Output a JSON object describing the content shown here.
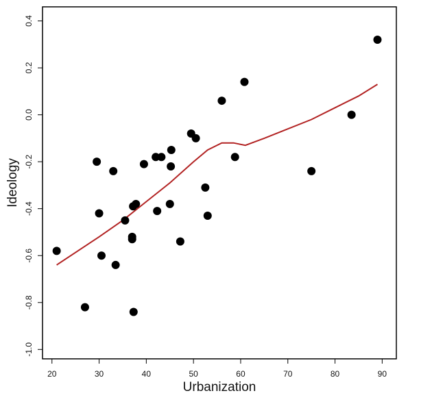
{
  "chart_data": {
    "type": "scatter",
    "xlabel": "Urbanization",
    "ylabel": "Ideology",
    "xlim": [
      18,
      93
    ],
    "ylim": [
      -1.04,
      0.46
    ],
    "x_ticks": [
      20,
      30,
      40,
      50,
      60,
      70,
      80,
      90
    ],
    "y_ticks": [
      -1.0,
      -0.8,
      -0.6,
      -0.4,
      -0.2,
      0.0,
      0.2,
      0.4
    ],
    "y_tick_labels": [
      "-1.0",
      "-0.8",
      "-0.6",
      "-0.4",
      "-0.2",
      "0.0",
      "0.2",
      "0.4"
    ],
    "grid": false,
    "point_color": "#000000",
    "line_color": "#b22222",
    "points": [
      {
        "x": 21,
        "y": -0.58
      },
      {
        "x": 27,
        "y": -0.82
      },
      {
        "x": 29.5,
        "y": -0.2
      },
      {
        "x": 30,
        "y": -0.42
      },
      {
        "x": 30.5,
        "y": -0.6
      },
      {
        "x": 33,
        "y": -0.24
      },
      {
        "x": 33.5,
        "y": -0.64
      },
      {
        "x": 35.5,
        "y": -0.45
      },
      {
        "x": 37,
        "y": -0.52
      },
      {
        "x": 37,
        "y": -0.53
      },
      {
        "x": 37.2,
        "y": -0.39
      },
      {
        "x": 37.3,
        "y": -0.84
      },
      {
        "x": 37.8,
        "y": -0.38
      },
      {
        "x": 39.5,
        "y": -0.21
      },
      {
        "x": 42,
        "y": -0.18
      },
      {
        "x": 42.3,
        "y": -0.41
      },
      {
        "x": 43.2,
        "y": -0.18
      },
      {
        "x": 45,
        "y": -0.38
      },
      {
        "x": 45.2,
        "y": -0.22
      },
      {
        "x": 45.3,
        "y": -0.15
      },
      {
        "x": 47.2,
        "y": -0.54
      },
      {
        "x": 49.5,
        "y": -0.08
      },
      {
        "x": 50.5,
        "y": -0.1
      },
      {
        "x": 52.5,
        "y": -0.31
      },
      {
        "x": 53,
        "y": -0.43
      },
      {
        "x": 56,
        "y": 0.06
      },
      {
        "x": 58.8,
        "y": -0.18
      },
      {
        "x": 60.8,
        "y": 0.14
      },
      {
        "x": 75,
        "y": -0.24
      },
      {
        "x": 83.5,
        "y": 0.0
      },
      {
        "x": 89,
        "y": 0.32
      }
    ],
    "smooth_line": [
      {
        "x": 21,
        "y": -0.64
      },
      {
        "x": 30,
        "y": -0.52
      },
      {
        "x": 35,
        "y": -0.45
      },
      {
        "x": 40,
        "y": -0.37
      },
      {
        "x": 45,
        "y": -0.29
      },
      {
        "x": 50,
        "y": -0.2
      },
      {
        "x": 53,
        "y": -0.15
      },
      {
        "x": 56,
        "y": -0.12
      },
      {
        "x": 58.5,
        "y": -0.12
      },
      {
        "x": 61,
        "y": -0.13
      },
      {
        "x": 65,
        "y": -0.1
      },
      {
        "x": 70,
        "y": -0.06
      },
      {
        "x": 75,
        "y": -0.02
      },
      {
        "x": 80,
        "y": 0.03
      },
      {
        "x": 85,
        "y": 0.08
      },
      {
        "x": 89,
        "y": 0.13
      }
    ]
  }
}
